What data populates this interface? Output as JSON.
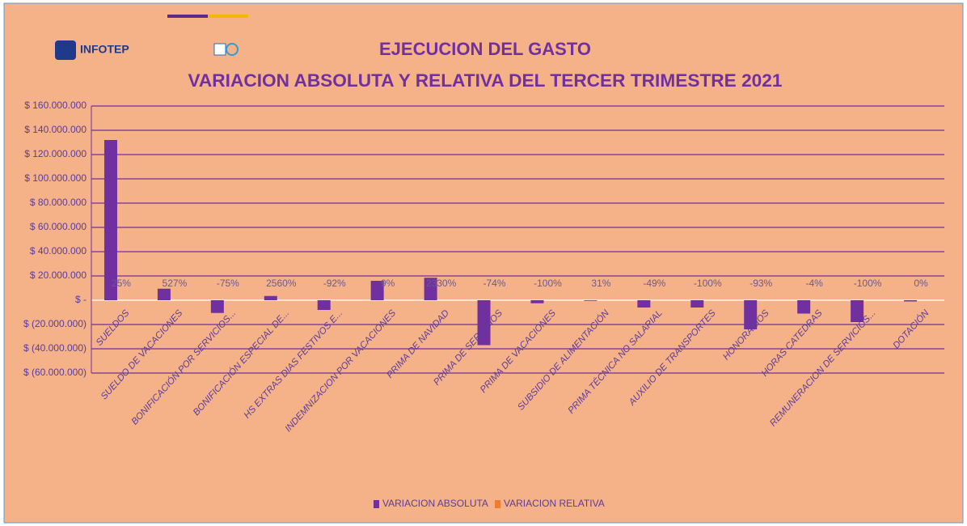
{
  "header": {
    "logo": "INFOTEP"
  },
  "chart_data": {
    "type": "bar",
    "title": "EJECUCION DEL GASTO",
    "subtitle": "VARIACION ABSOLUTA Y RELATIVA DEL TERCER TRIMESTRE 2021",
    "categories": [
      "SUELDOS",
      "SUELDO DE VACACIONES",
      "BONIFICACIÓN POR SERVICIOS...",
      "BONIFICACIÓN ESPECIAL DE...",
      "HS EXTRAS DIAS FESTIVOS E...",
      "INDEMNIZACION POR VACACIONES",
      "PRIMA DE NAVIDAD",
      "PRIMA DE SERVICIOS",
      "PRIMA DE VACACIONES",
      "SUBSIDIO DE ALIMENTACIÓN",
      "PRIMA TÉCNICA NO SALARIAL",
      "AUXILIO DE TRANSPORTES",
      "HONORARIOS",
      "HORAS CATEDRAS",
      "REMUNERACION DE SERVICIOS...",
      "DOTACIÓN"
    ],
    "series": [
      {
        "name": "VARIACION ABSOLUTA",
        "color": "#7030a0",
        "values": [
          132000000,
          9500000,
          -10500000,
          3500000,
          -8000000,
          16000000,
          18500000,
          -37000000,
          -2500000,
          -500000,
          -6000000,
          -6000000,
          -24000000,
          -11000000,
          -18000000,
          -1000000
        ]
      },
      {
        "name": "VARIACION RELATIVA",
        "color": "#ed7d31",
        "values": [
          25,
          527,
          -75,
          2560,
          -92,
          9,
          2330,
          -74,
          -100,
          31,
          -49,
          -100,
          -93,
          -4,
          -100,
          0
        ],
        "value_labels": [
          "25%",
          "527%",
          "-75%",
          "2560%",
          "-92%",
          "9%",
          "2330%",
          "-74%",
          "-100%",
          "31%",
          "-49%",
          "-100%",
          "-93%",
          "-4%",
          "-100%",
          "0%"
        ]
      }
    ],
    "ylim": [
      -60000000,
      160000000
    ],
    "yticks": [
      {
        "value": -60000000,
        "label": "$ (60.000.000)"
      },
      {
        "value": -40000000,
        "label": "$ (40.000.000)"
      },
      {
        "value": -20000000,
        "label": "$ (20.000.000)"
      },
      {
        "value": 0,
        "label": "$ -"
      },
      {
        "value": 20000000,
        "label": "$ 20.000.000"
      },
      {
        "value": 40000000,
        "label": "$ 40.000.000"
      },
      {
        "value": 60000000,
        "label": "$ 60.000.000"
      },
      {
        "value": 80000000,
        "label": "$ 80.000.000"
      },
      {
        "value": 100000000,
        "label": "$ 100.000.000"
      },
      {
        "value": 120000000,
        "label": "$ 120.000.000"
      },
      {
        "value": 140000000,
        "label": "$ 140.000.000"
      },
      {
        "value": 160000000,
        "label": "$ 160.000.000"
      }
    ],
    "grid": true,
    "legend": "bottom"
  }
}
